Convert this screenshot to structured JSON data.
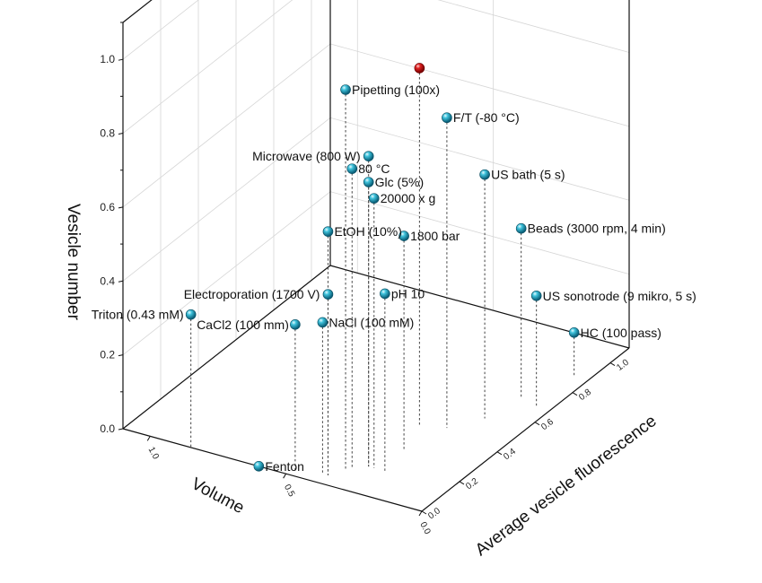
{
  "chart_data": {
    "type": "scatter",
    "title": "",
    "zlabel": "Vesicle number",
    "xlabel": "Average vesicle fluorescence",
    "ylabel": "Volume",
    "zlim": [
      0,
      1.1
    ],
    "xlim": [
      0,
      1.1
    ],
    "ylim": [
      0,
      1.1
    ],
    "z_ticks": [
      "0.0",
      "0.2",
      "0.4",
      "0.6",
      "0.8",
      "1.0"
    ],
    "x_ticks": [
      "0.0",
      "0.2",
      "0.4",
      "0.6",
      "0.8",
      "1.0"
    ],
    "y_ticks": [
      "0.0",
      "0.5",
      "1.0"
    ],
    "grid": true,
    "colors": {
      "point": "#1a9bb5",
      "highlight": "#cc1111",
      "frame": "#111111"
    },
    "points": [
      {
        "label": "Pipetting (100x)",
        "fluorescence": 0.1,
        "volume": 0.35,
        "vesicle_number": 1.03,
        "color": "teal"
      },
      {
        "label": "",
        "fluorescence": 0.42,
        "volume": 0.3,
        "vesicle_number": 0.97,
        "color": "red"
      },
      {
        "label": "Microwave (800 W)",
        "fluorescence": 0.15,
        "volume": 0.3,
        "vesicle_number": 0.84
      },
      {
        "label": "F/T (-80 °C)",
        "fluorescence": 0.45,
        "volume": 0.22,
        "vesicle_number": 0.84
      },
      {
        "label": "80 °C",
        "fluorescence": 0.12,
        "volume": 0.34,
        "vesicle_number": 0.81
      },
      {
        "label": "Glc (5%)",
        "fluorescence": 0.15,
        "volume": 0.3,
        "vesicle_number": 0.77
      },
      {
        "label": "20000 x g",
        "fluorescence": 0.15,
        "volume": 0.28,
        "vesicle_number": 0.73
      },
      {
        "label": "EtOH (10%)",
        "fluorescence": 0.05,
        "volume": 0.38,
        "vesicle_number": 0.66
      },
      {
        "label": "US bath (5 s)",
        "fluorescence": 0.55,
        "volume": 0.15,
        "vesicle_number": 0.66
      },
      {
        "label": "1800 bar",
        "fluorescence": 0.28,
        "volume": 0.26,
        "vesicle_number": 0.58
      },
      {
        "label": "pH 10",
        "fluorescence": 0.15,
        "volume": 0.24,
        "vesicle_number": 0.48
      },
      {
        "label": "Electroporation (1700 V)",
        "fluorescence": 0.05,
        "volume": 0.38,
        "vesicle_number": 0.49
      },
      {
        "label": "Beads (3000 rpm, 4 min)",
        "fluorescence": 0.7,
        "volume": 0.12,
        "vesicle_number": 0.46
      },
      {
        "label": "CaCl2 (100 mm)",
        "fluorescence": 0.02,
        "volume": 0.48,
        "vesicle_number": 0.4
      },
      {
        "label": "NaCl (100 mM)",
        "fluorescence": 0.05,
        "volume": 0.4,
        "vesicle_number": 0.41
      },
      {
        "label": "Triton (0.43 mM)",
        "fluorescence": 0.0,
        "volume": 0.85,
        "vesicle_number": 0.36
      },
      {
        "label": "US sonotrode (9 mikro, 5 s)",
        "fluorescence": 0.68,
        "volume": 0.05,
        "vesicle_number": 0.3
      },
      {
        "label": "HC (100 pass)",
        "fluorescence": 0.88,
        "volume": 0.05,
        "vesicle_number": 0.12
      },
      {
        "label": "Fenton",
        "fluorescence": 0.0,
        "volume": 0.6,
        "vesicle_number": 0.0
      }
    ]
  }
}
